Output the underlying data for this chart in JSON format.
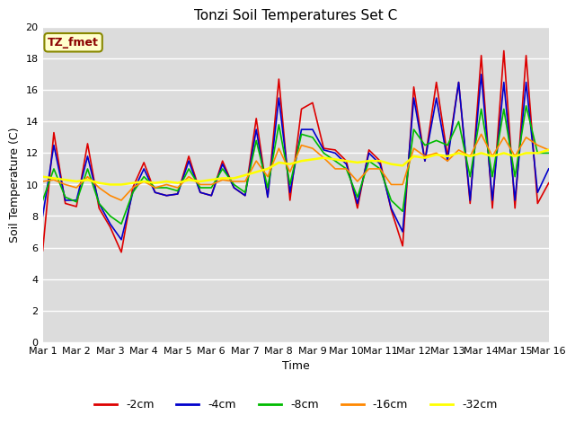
{
  "title": "Tonzi Soil Temperatures Set C",
  "xlabel": "Time",
  "ylabel": "Soil Temperature (C)",
  "annotation": "TZ_fmet",
  "ylim": [
    0,
    20
  ],
  "yticks": [
    0,
    2,
    4,
    6,
    8,
    10,
    12,
    14,
    16,
    18,
    20
  ],
  "xtick_labels": [
    "Mar 1",
    "Mar 2",
    "Mar 3",
    "Mar 4",
    "Mar 5",
    "Mar 6",
    "Mar 7",
    "Mar 8",
    "Mar 9",
    "Mar 10",
    "Mar 11",
    "Mar 12",
    "Mar 13",
    "Mar 14",
    "Mar 15",
    "Mar 16"
  ],
  "bg_color": "#dcdcdc",
  "fig_color": "#ffffff",
  "series_order": [
    "-2cm",
    "-4cm",
    "-8cm",
    "-16cm",
    "-32cm"
  ],
  "series": {
    "-2cm": {
      "color": "#dd0000",
      "lw": 1.2
    },
    "-4cm": {
      "color": "#0000cc",
      "lw": 1.2
    },
    "-8cm": {
      "color": "#00bb00",
      "lw": 1.2
    },
    "-16cm": {
      "color": "#ff8800",
      "lw": 1.2
    },
    "-32cm": {
      "color": "#ffff00",
      "lw": 1.8
    }
  },
  "x": [
    0,
    0.33,
    0.67,
    1,
    1.33,
    1.67,
    2,
    2.33,
    2.67,
    3,
    3.33,
    3.67,
    4,
    4.33,
    4.67,
    5,
    5.33,
    5.67,
    6,
    6.33,
    6.67,
    7,
    7.33,
    7.67,
    8,
    8.33,
    8.67,
    9,
    9.33,
    9.67,
    10,
    10.33,
    10.67,
    11,
    11.33,
    11.67,
    12,
    12.33,
    12.67,
    13,
    13.33,
    13.67,
    14,
    14.33,
    14.67,
    15
  ],
  "y_2cm": [
    5.8,
    13.3,
    8.8,
    8.6,
    12.6,
    8.5,
    7.3,
    5.7,
    9.8,
    11.4,
    9.5,
    9.3,
    9.4,
    11.8,
    9.5,
    9.3,
    11.5,
    9.8,
    9.3,
    14.2,
    9.2,
    16.7,
    9.0,
    14.8,
    15.2,
    12.3,
    12.2,
    11.5,
    8.5,
    12.2,
    11.5,
    8.4,
    6.1,
    16.2,
    11.5,
    16.5,
    11.8,
    16.5,
    8.8,
    18.2,
    8.5,
    18.5,
    8.5,
    18.2,
    8.8,
    10.1
  ],
  "y_4cm": [
    8.0,
    12.5,
    9.0,
    9.0,
    11.8,
    8.8,
    7.5,
    6.5,
    9.5,
    11.0,
    9.5,
    9.3,
    9.4,
    11.5,
    9.5,
    9.3,
    11.3,
    9.8,
    9.3,
    13.5,
    9.2,
    15.5,
    9.5,
    13.5,
    13.5,
    12.2,
    12.0,
    11.3,
    8.8,
    12.0,
    11.3,
    8.5,
    7.0,
    15.5,
    11.5,
    15.5,
    11.5,
    16.5,
    9.0,
    17.0,
    9.0,
    16.5,
    9.0,
    16.5,
    9.5,
    11.0
  ],
  "y_8cm": [
    9.0,
    11.0,
    9.2,
    8.9,
    11.0,
    8.8,
    8.0,
    7.5,
    9.5,
    10.5,
    9.8,
    9.8,
    9.6,
    11.0,
    9.8,
    9.8,
    11.0,
    10.0,
    9.5,
    12.8,
    9.8,
    13.8,
    10.0,
    13.2,
    13.0,
    12.0,
    11.5,
    11.0,
    9.2,
    11.5,
    11.0,
    9.0,
    8.3,
    13.5,
    12.5,
    12.8,
    12.5,
    14.0,
    10.5,
    14.8,
    10.5,
    14.8,
    10.5,
    15.0,
    12.0,
    12.0
  ],
  "y_16cm": [
    10.2,
    10.3,
    10.0,
    9.8,
    10.5,
    9.8,
    9.3,
    9.0,
    9.8,
    10.2,
    9.8,
    10.0,
    9.8,
    10.5,
    10.0,
    10.0,
    10.3,
    10.2,
    10.2,
    11.5,
    10.5,
    12.3,
    10.8,
    12.5,
    12.3,
    11.7,
    11.0,
    11.0,
    10.2,
    11.0,
    11.0,
    10.0,
    10.0,
    12.3,
    11.8,
    12.0,
    11.5,
    12.2,
    11.8,
    13.2,
    11.8,
    13.0,
    11.8,
    13.0,
    12.5,
    12.2
  ],
  "y_32cm": [
    10.5,
    10.4,
    10.3,
    10.2,
    10.3,
    10.1,
    10.0,
    10.0,
    10.1,
    10.2,
    10.1,
    10.2,
    10.1,
    10.3,
    10.2,
    10.3,
    10.4,
    10.4,
    10.6,
    10.8,
    11.0,
    11.4,
    11.3,
    11.5,
    11.6,
    11.7,
    11.6,
    11.5,
    11.4,
    11.5,
    11.5,
    11.3,
    11.2,
    11.8,
    11.7,
    11.9,
    11.8,
    12.0,
    11.8,
    12.0,
    11.8,
    12.0,
    11.8,
    12.0,
    12.0,
    12.2
  ]
}
